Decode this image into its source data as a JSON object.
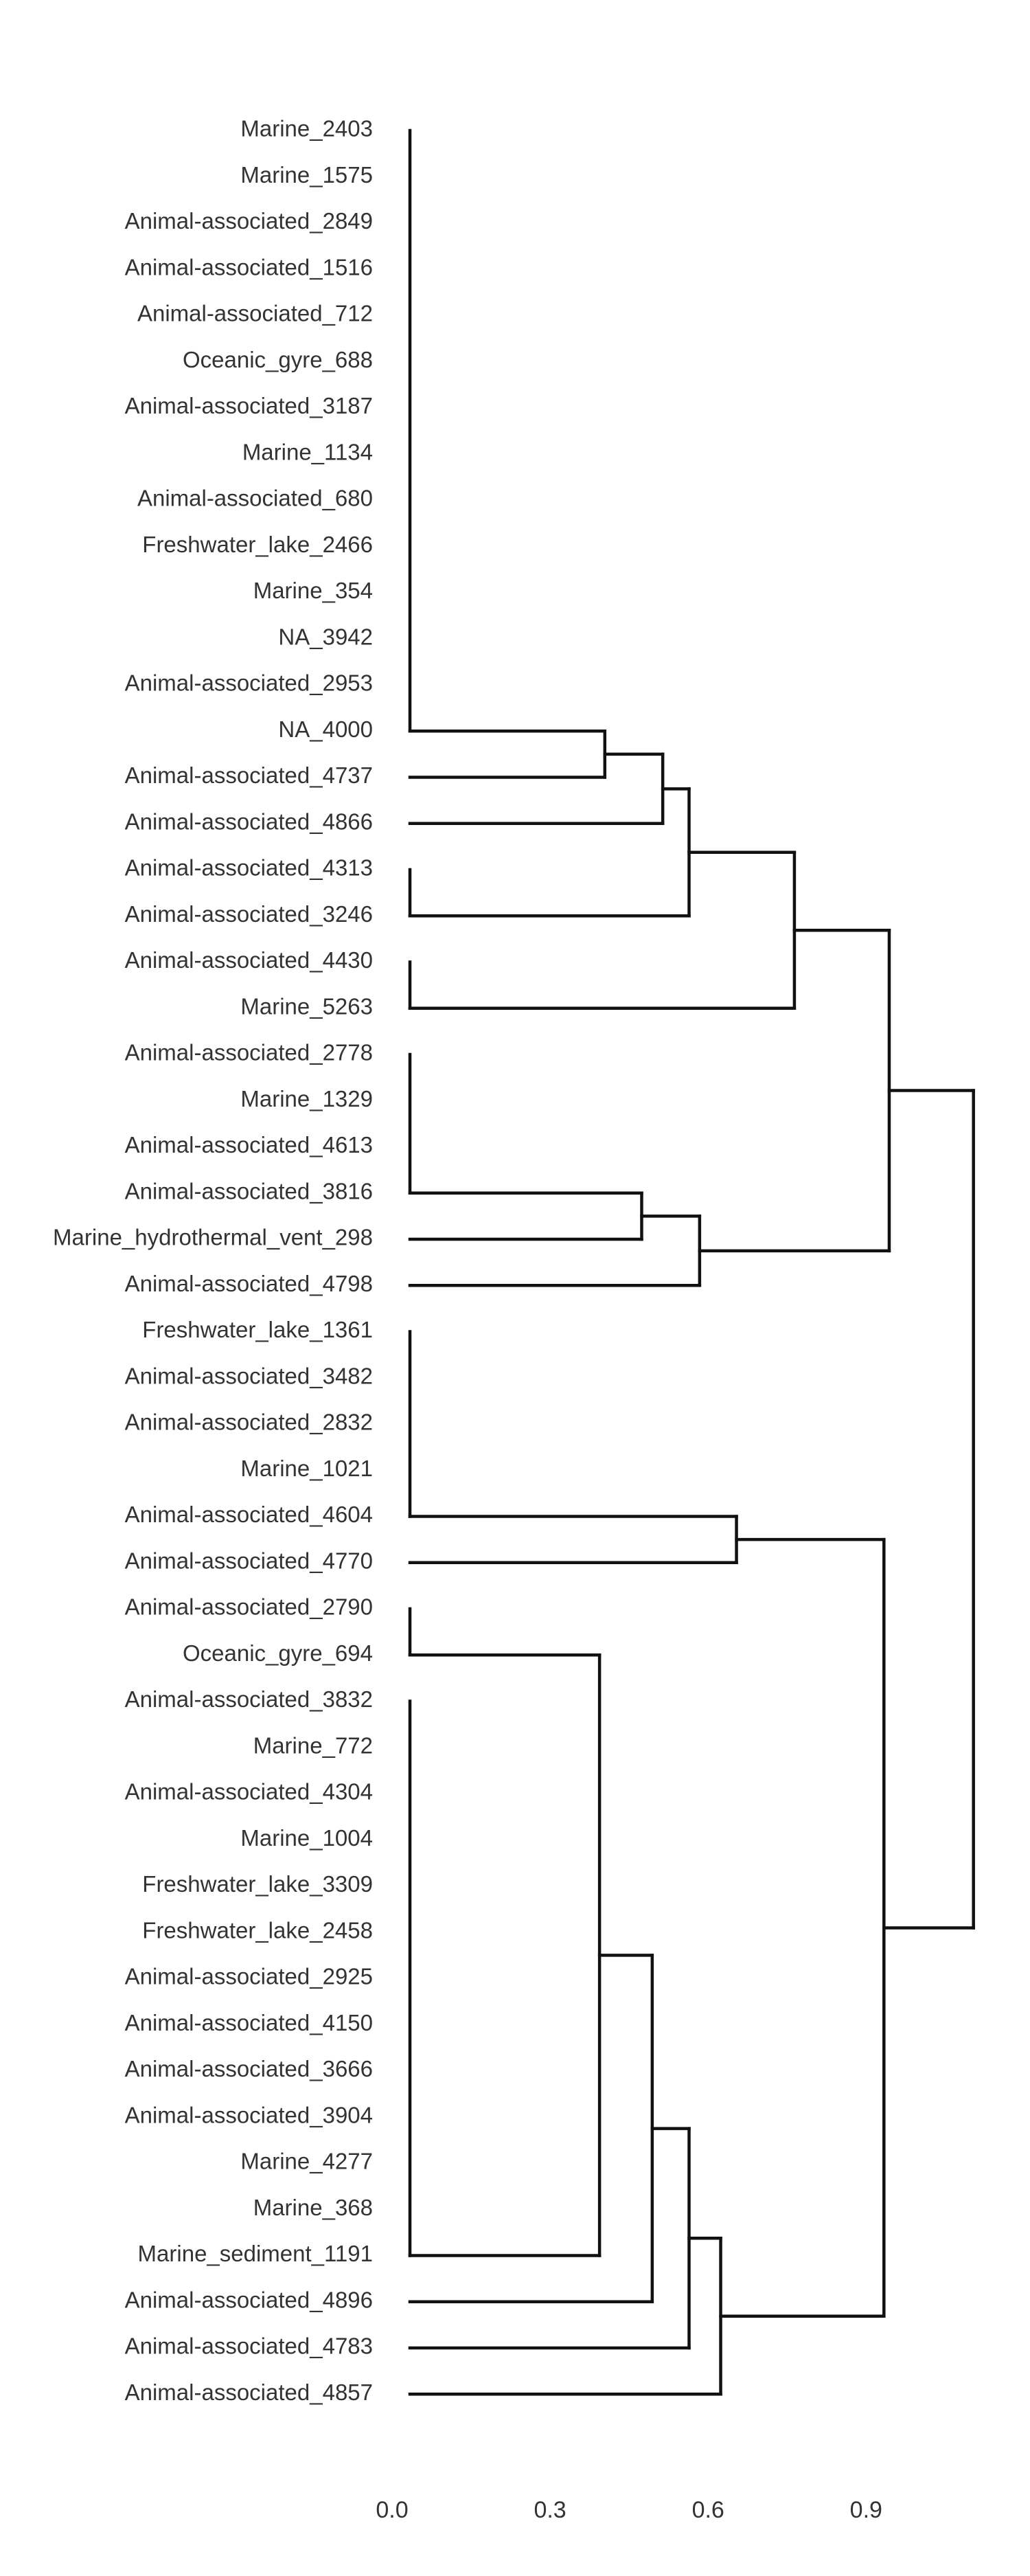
{
  "chart_data": {
    "type": "dendrogram",
    "orientation": "horizontal",
    "title": "",
    "xlabel": "",
    "ylabel": "",
    "xticks": [
      0.0,
      0.3,
      0.6,
      0.9
    ],
    "xtick_labels": [
      "0.0",
      "0.3",
      "0.6",
      "0.9"
    ],
    "xlim": [
      0.0,
      1.16
    ],
    "grid": false,
    "leaves": [
      "Marine_2403",
      "Marine_1575",
      "Animal-associated_2849",
      "Animal-associated_1516",
      "Animal-associated_712",
      "Oceanic_gyre_688",
      "Animal-associated_3187",
      "Marine_1134",
      "Animal-associated_680",
      "Freshwater_lake_2466",
      "Marine_354",
      "NA_3942",
      "Animal-associated_2953",
      "NA_4000",
      "Animal-associated_4737",
      "Animal-associated_4866",
      "Animal-associated_4313",
      "Animal-associated_3246",
      "Animal-associated_4430",
      "Marine_5263",
      "Animal-associated_2778",
      "Marine_1329",
      "Animal-associated_4613",
      "Animal-associated_3816",
      "Marine_hydrothermal_vent_298",
      "Animal-associated_4798",
      "Freshwater_lake_1361",
      "Animal-associated_3482",
      "Animal-associated_2832",
      "Marine_1021",
      "Animal-associated_4604",
      "Animal-associated_4770",
      "Animal-associated_2790",
      "Oceanic_gyre_694",
      "Animal-associated_3832",
      "Marine_772",
      "Animal-associated_4304",
      "Marine_1004",
      "Freshwater_lake_3309",
      "Freshwater_lake_2458",
      "Animal-associated_2925",
      "Animal-associated_4150",
      "Animal-associated_3666",
      "Animal-associated_3904",
      "Marine_4277",
      "Marine_368",
      "Marine_sediment_1191",
      "Animal-associated_4896",
      "Animal-associated_4783",
      "Animal-associated_4857"
    ],
    "clusters": [
      {
        "id": "A",
        "children": [
          0,
          1,
          2,
          3,
          4,
          5,
          6,
          7,
          8,
          9,
          10,
          11,
          12,
          13
        ],
        "height": 0.0
      },
      {
        "id": "B",
        "children": [
          "A",
          14
        ],
        "height": 0.37
      },
      {
        "id": "C",
        "children": [
          "B",
          15
        ],
        "height": 0.48
      },
      {
        "id": "D",
        "children": [
          16,
          17
        ],
        "height": 0.0
      },
      {
        "id": "E",
        "children": [
          "C",
          "D"
        ],
        "height": 0.53
      },
      {
        "id": "F",
        "children": [
          18,
          19
        ],
        "height": 0.0
      },
      {
        "id": "G",
        "children": [
          "E",
          "F"
        ],
        "height": 0.73
      },
      {
        "id": "H",
        "children": [
          20,
          21,
          22,
          23
        ],
        "height": 0.0
      },
      {
        "id": "I",
        "children": [
          "H",
          24
        ],
        "height": 0.44
      },
      {
        "id": "J",
        "children": [
          "I",
          25
        ],
        "height": 0.55
      },
      {
        "id": "K",
        "children": [
          "G",
          "J"
        ],
        "height": 0.91
      },
      {
        "id": "L",
        "children": [
          26,
          27,
          28,
          29,
          30
        ],
        "height": 0.0
      },
      {
        "id": "M",
        "children": [
          "L",
          31
        ],
        "height": 0.62
      },
      {
        "id": "N",
        "children": [
          32,
          33
        ],
        "height": 0.0
      },
      {
        "id": "O",
        "children": [
          34,
          35,
          36,
          37,
          38,
          39,
          40,
          41,
          42,
          43,
          44,
          45,
          46
        ],
        "height": 0.0
      },
      {
        "id": "P",
        "children": [
          "N",
          "O"
        ],
        "height": 0.36
      },
      {
        "id": "Q",
        "children": [
          "P",
          47
        ],
        "height": 0.46
      },
      {
        "id": "R",
        "children": [
          "Q",
          48
        ],
        "height": 0.53
      },
      {
        "id": "S",
        "children": [
          "R",
          49
        ],
        "height": 0.59
      },
      {
        "id": "T",
        "children": [
          "M",
          "S"
        ],
        "height": 0.9
      },
      {
        "id": "U",
        "children": [
          "K",
          "T"
        ],
        "height": 1.07
      }
    ]
  }
}
